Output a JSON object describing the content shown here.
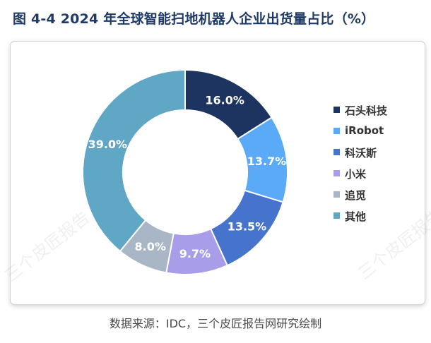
{
  "title": "图 4-4 2024 年全球智能扫地机器人企业出货量占比（%）",
  "source": "数据来源：IDC，三个皮匠报告网研究绘制",
  "watermark": "三个皮匠报告",
  "chart_data": {
    "type": "pie",
    "style": "donut",
    "legend_position": "right",
    "series": [
      {
        "name": "石头科技",
        "value": 16.0,
        "label": "16.0%",
        "color": "#1d3461"
      },
      {
        "name": "iRobot",
        "value": 13.7,
        "label": "13.7%",
        "color": "#5aaaf7"
      },
      {
        "name": "科沃斯",
        "value": 13.5,
        "label": "13.5%",
        "color": "#4673cc"
      },
      {
        "name": "小米",
        "value": 9.7,
        "label": "9.7%",
        "color": "#a79de8"
      },
      {
        "name": "追觅",
        "value": 8.0,
        "label": "8.0%",
        "color": "#a9b6c6"
      },
      {
        "name": "其他",
        "value": 39.0,
        "label": "39.0%",
        "color": "#5fa7c5"
      }
    ]
  }
}
